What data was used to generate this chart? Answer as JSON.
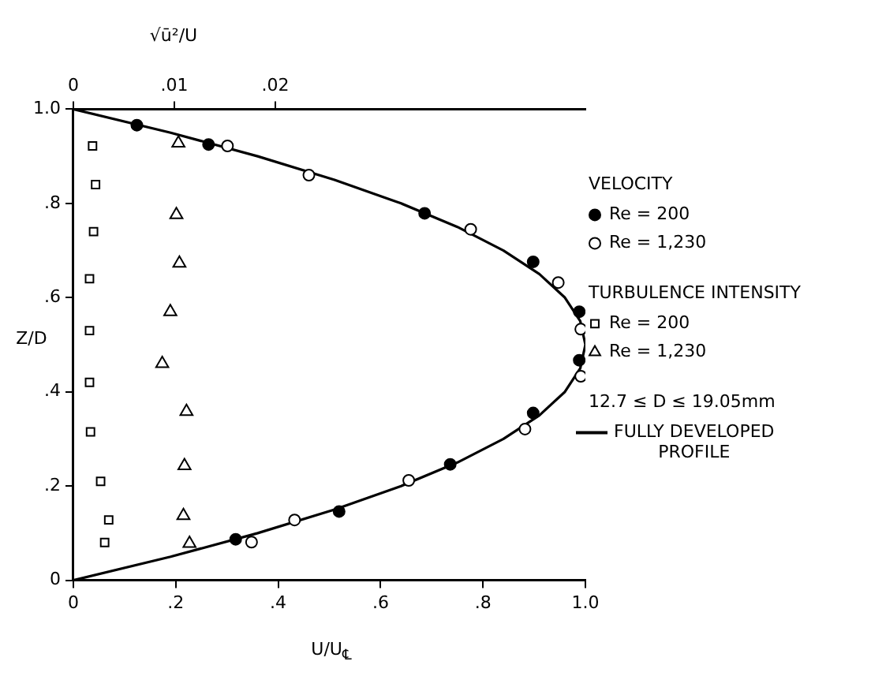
{
  "chart_data": {
    "type": "scatter",
    "xlabel": "U/U$_{℄}$",
    "ylabel": "Z/D",
    "x2label": "√ū²/U",
    "xlim": [
      0,
      1
    ],
    "xticks": [
      {
        "value": 0,
        "label": "0"
      },
      {
        "value": 0.2,
        "label": ".2"
      },
      {
        "value": 0.4,
        "label": ".4"
      },
      {
        "value": 0.6,
        "label": ".6"
      },
      {
        "value": 0.8,
        "label": ".8"
      },
      {
        "value": 1,
        "label": "1.0"
      }
    ],
    "ylim": [
      0,
      1
    ],
    "yticks": [
      {
        "value": 0,
        "label": "0"
      },
      {
        "value": 0.2,
        "label": ".2"
      },
      {
        "value": 0.4,
        "label": ".4"
      },
      {
        "value": 0.6,
        "label": ".6"
      },
      {
        "value": 0.8,
        "label": ".8"
      },
      {
        "value": 1,
        "label": "1.0"
      }
    ],
    "x2lim": [
      0,
      0.0507
    ],
    "x2ticks": [
      {
        "value": 0,
        "label": "0"
      },
      {
        "value": 0.01,
        "label": ".01"
      },
      {
        "value": 0.02,
        "label": ".02"
      }
    ],
    "grid": false,
    "legend": "right",
    "annotations": [
      "VELOCITY",
      "TURBULENCE INTENSITY",
      "12.7 ≤ D ≤ 19.05mm"
    ],
    "series": [
      {
        "name": "Re = 200",
        "type": "scatter",
        "marker": "circle",
        "color": "#000000",
        "x": [
          0.124,
          0.264,
          0.686,
          0.898,
          0.988,
          0.988,
          0.898,
          0.736,
          0.519,
          0.317
        ],
        "values": [
          0.966,
          0.925,
          0.779,
          0.676,
          0.57,
          0.467,
          0.355,
          0.246,
          0.146,
          0.087
        ]
      },
      {
        "name": "Re = 1,230",
        "type": "scatter",
        "marker": "circle",
        "color": "#ffffff",
        "x": [
          0.301,
          0.46,
          0.776,
          0.947,
          0.991,
          0.991,
          0.882,
          0.655,
          0.432,
          0.348
        ],
        "values": [
          0.922,
          0.86,
          0.745,
          0.632,
          0.533,
          0.433,
          0.321,
          0.212,
          0.128,
          0.081
        ]
      },
      {
        "name": "Re = 200",
        "type": "scatter",
        "marker": "square",
        "color": "#ffffff",
        "axis": "x2",
        "x": [
          0.0019,
          0.0022,
          0.002,
          0.0016,
          0.0016,
          0.0016,
          0.0017,
          0.0027,
          0.0035,
          0.0031
        ],
        "values": [
          0.922,
          0.84,
          0.74,
          0.64,
          0.53,
          0.42,
          0.315,
          0.21,
          0.128,
          0.08
        ]
      },
      {
        "name": "Re = 1,230",
        "type": "scatter",
        "marker": "triangle",
        "color": "#ffffff",
        "axis": "x2",
        "x": [
          0.0104,
          0.0102,
          0.0105,
          0.0096,
          0.0088,
          0.0112,
          0.011,
          0.0109,
          0.0115
        ],
        "values": [
          0.928,
          0.776,
          0.673,
          0.57,
          0.46,
          0.358,
          0.243,
          0.137,
          0.078
        ]
      },
      {
        "name": "FULLY DEVELOPED PROFILE",
        "type": "line",
        "marker": "none",
        "line_style": "solid",
        "color": "#000000",
        "x": [
          0,
          0.19,
          0.36,
          0.51,
          0.64,
          0.75,
          0.84,
          0.91,
          0.96,
          0.99,
          1.0,
          0.99,
          0.96,
          0.91,
          0.84,
          0.75,
          0.64,
          0.51,
          0.36,
          0.19,
          0
        ],
        "values": [
          0,
          0.05,
          0.1,
          0.15,
          0.2,
          0.25,
          0.3,
          0.35,
          0.4,
          0.45,
          0.5,
          0.55,
          0.6,
          0.65,
          0.7,
          0.75,
          0.8,
          0.85,
          0.9,
          0.95,
          1.0
        ]
      }
    ]
  }
}
